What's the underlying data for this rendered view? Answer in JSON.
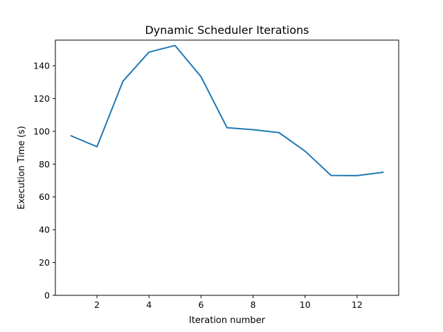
{
  "chart_data": {
    "type": "line",
    "title": "Dynamic Scheduler Iterations",
    "xlabel": "Iteration number",
    "ylabel": "Execution Time (s)",
    "x": [
      1,
      2,
      3,
      4,
      5,
      6,
      7,
      8,
      9,
      10,
      11,
      12,
      13
    ],
    "series": [
      {
        "name": "",
        "color": "#1f77b4",
        "values": [
          97.3,
          90.6,
          130.6,
          148.3,
          152.3,
          133.3,
          102.2,
          101.0,
          99.2,
          87.9,
          73.1,
          73.0,
          75.0
        ]
      }
    ],
    "xlim": [
      0.4,
      13.6
    ],
    "ylim": [
      0,
      155.6
    ],
    "xticks": [
      2,
      4,
      6,
      8,
      10,
      12
    ],
    "yticks": [
      0,
      20,
      40,
      60,
      80,
      100,
      120,
      140
    ],
    "grid": false,
    "legend": "none"
  }
}
